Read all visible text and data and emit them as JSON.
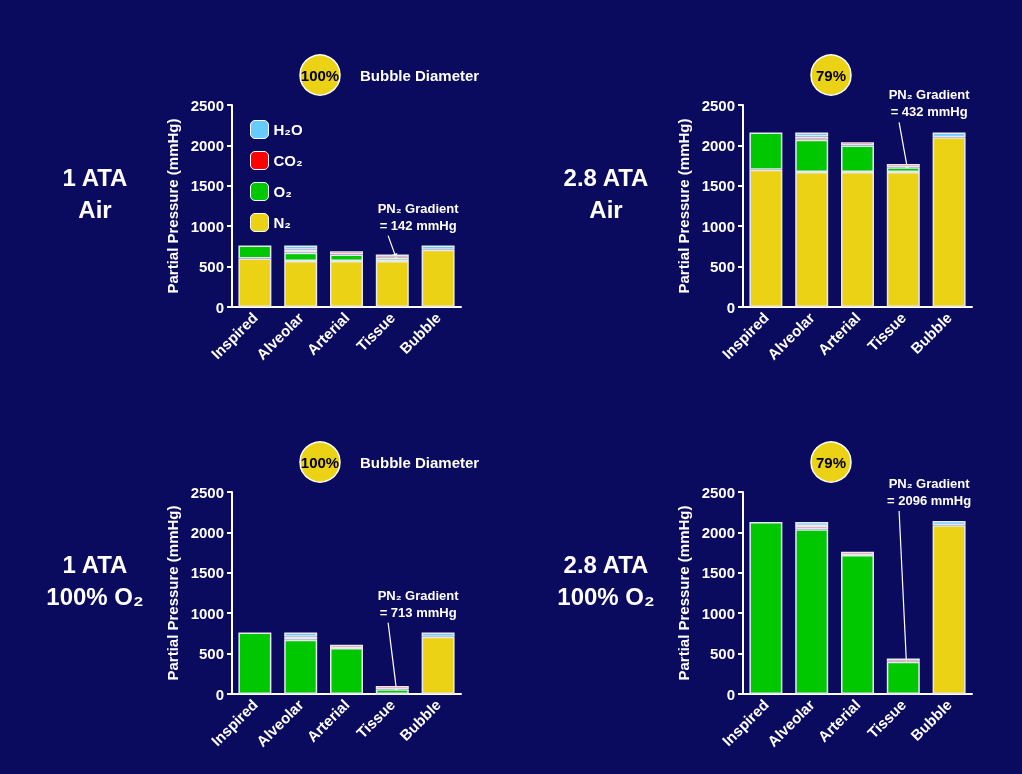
{
  "chart_data": [
    {
      "type": "bar",
      "title": "1 ATA\nAir",
      "ylabel": "Partial Pressure (mmHg)",
      "categories": [
        "Inspired",
        "Alveolar",
        "Arterial",
        "Tissue",
        "Bubble"
      ],
      "stacked": true,
      "ylim": [
        0,
        2500
      ],
      "yticks": [
        0,
        500,
        1000,
        1500,
        2000,
        2500
      ],
      "grid": false,
      "legend": "top left",
      "series": [
        {
          "name": "N₂",
          "color": "#ecd214",
          "values": [
            600,
            570,
            570,
            570,
            710
          ]
        },
        {
          "name": "O₂",
          "color": "#00c800",
          "values": [
            160,
            100,
            80,
            40,
            null
          ]
        },
        {
          "name": "CO₂",
          "color": "#ff0000",
          "values": [
            null,
            40,
            40,
            40,
            null
          ]
        },
        {
          "name": "H₂O",
          "color": "#66ccff",
          "values": [
            null,
            50,
            null,
            null,
            50
          ]
        }
      ],
      "annotations": [
        "100%",
        "Bubble Diameter",
        {
          "text": "PN₂ Gradient\n= 142 mmHg",
          "x": "Tissue",
          "y": 570
        }
      ]
    },
    {
      "type": "bar",
      "title": "2.8 ATA\nAir",
      "ylabel": "Partial Pressure (mmHg)",
      "categories": [
        "Inspired",
        "Alveolar",
        "Arterial",
        "Tissue",
        "Bubble"
      ],
      "stacked": true,
      "ylim": [
        0,
        2500
      ],
      "yticks": [
        0,
        500,
        1000,
        1500,
        2000,
        2500
      ],
      "grid": false,
      "series": [
        {
          "color": "#ecd214",
          "values": [
            1700,
            1670,
            1670,
            1670,
            2100
          ]
        },
        {
          "color": "#00c800",
          "values": [
            460,
            400,
            330,
            60,
            null
          ]
        },
        {
          "color": "#ff0000",
          "values": [
            null,
            40,
            40,
            40,
            null
          ]
        },
        {
          "color": "#66ccff",
          "values": [
            null,
            50,
            null,
            null,
            60
          ]
        }
      ],
      "annotations": [
        "79%",
        {
          "text": "PN₂ Gradient\n= 432 mmHg",
          "x": "Tissue",
          "y": 1670
        }
      ]
    },
    {
      "type": "bar",
      "title": "1 ATA\n100% O₂",
      "ylabel": "Partial Pressure (mmHg)",
      "categories": [
        "Inspired",
        "Alveolar",
        "Arterial",
        "Tissue",
        "Bubble"
      ],
      "stacked": true,
      "ylim": [
        0,
        2500
      ],
      "yticks": [
        0,
        500,
        1000,
        1500,
        2000,
        2500
      ],
      "grid": false,
      "series": [
        {
          "color": "#ecd214",
          "values": [
            null,
            null,
            null,
            0,
            710
          ]
        },
        {
          "color": "#00c800",
          "values": [
            760,
            670,
            570,
            60,
            null
          ]
        },
        {
          "color": "#ff0000",
          "values": [
            null,
            40,
            40,
            40,
            null
          ]
        },
        {
          "color": "#66ccff",
          "values": [
            null,
            50,
            null,
            null,
            50
          ]
        }
      ],
      "annotations": [
        "100%",
        "Bubble Diameter",
        {
          "text": "PN₂ Gradient\n= 713 mmHg",
          "x": "Tissue",
          "y": 0
        }
      ]
    },
    {
      "type": "bar",
      "title": "2.8 ATA\n100% O₂",
      "ylabel": "Partial Pressure (mmHg)",
      "categories": [
        "Inspired",
        "Alveolar",
        "Arterial",
        "Tissue",
        "Bubble"
      ],
      "stacked": true,
      "ylim": [
        0,
        2500
      ],
      "yticks": [
        0,
        500,
        1000,
        1500,
        2000,
        2500
      ],
      "grid": false,
      "series": [
        {
          "color": "#ecd214",
          "values": [
            null,
            null,
            null,
            0,
            2090
          ]
        },
        {
          "color": "#00c800",
          "values": [
            2130,
            2040,
            1720,
            400,
            null
          ]
        },
        {
          "color": "#ff0000",
          "values": [
            null,
            40,
            40,
            40,
            null
          ]
        },
        {
          "color": "#66ccff",
          "values": [
            null,
            50,
            null,
            null,
            50
          ]
        }
      ],
      "annotations": [
        "79%",
        {
          "text": "PN₂ Gradient\n= 2096 mmHg",
          "x": "Tissue",
          "y": 0
        }
      ]
    }
  ]
}
